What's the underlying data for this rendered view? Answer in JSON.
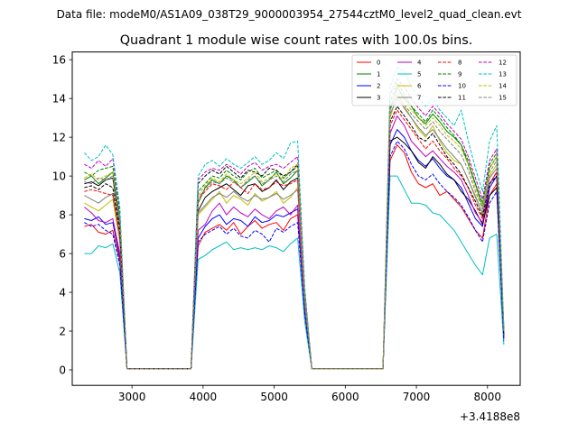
{
  "suptitle": "Data file: modeM0/AS1A09_038T29_9000003954_27544cztM0_level2_quad_clean.evt",
  "chart_data": {
    "type": "line",
    "title": "Quadrant 1 module wise count rates with 100.0s bins.",
    "xlabel": "",
    "ylabel": "",
    "x_offset_label": "+3.4188e8",
    "xlim": [
      2160,
      8460
    ],
    "ylim": [
      -0.8,
      16.4
    ],
    "xticks": [
      3000,
      4000,
      5000,
      6000,
      7000,
      8000
    ],
    "yticks": [
      0,
      2,
      4,
      6,
      8,
      10,
      12,
      14,
      16
    ],
    "legend_location": "top-right",
    "legend_columns": 4,
    "x": [
      2330,
      2430,
      2530,
      2630,
      2730,
      2830,
      2930,
      3030,
      3130,
      3230,
      3330,
      3430,
      3530,
      3630,
      3730,
      3830,
      3930,
      4030,
      4130,
      4230,
      4330,
      4430,
      4530,
      4630,
      4730,
      4830,
      4930,
      5030,
      5130,
      5230,
      5330,
      5430,
      5530,
      5630,
      5730,
      5830,
      5930,
      6030,
      6130,
      6230,
      6330,
      6430,
      6530,
      6630,
      6730,
      6830,
      6930,
      7030,
      7130,
      7230,
      7330,
      7430,
      7530,
      7630,
      7730,
      7830,
      7930,
      8030,
      8130,
      8230
    ],
    "series": [
      {
        "name": "0",
        "color": "#ff0000",
        "style": "solid",
        "values": [
          7.4,
          7.5,
          7.1,
          7.0,
          7.2,
          5.6,
          0.05,
          0.05,
          0.05,
          0.05,
          0.05,
          0.05,
          0.05,
          0.05,
          0.05,
          0.05,
          6.4,
          7.1,
          7.3,
          7.5,
          7.2,
          7.6,
          7.0,
          7.4,
          7.7,
          7.3,
          7.5,
          7.6,
          7.2,
          7.8,
          8.0,
          3.0,
          0.05,
          0.05,
          0.05,
          0.05,
          0.05,
          0.05,
          0.05,
          0.05,
          0.05,
          0.05,
          0.05,
          10.8,
          11.6,
          11.2,
          10.2,
          9.6,
          9.4,
          9.6,
          9.0,
          9.2,
          8.8,
          8.4,
          7.8,
          7.2,
          6.8,
          9.0,
          9.6,
          1.6
        ]
      },
      {
        "name": "1",
        "color": "#008000",
        "style": "solid",
        "values": [
          9.8,
          10.0,
          9.6,
          9.9,
          10.2,
          7.8,
          0.05,
          0.05,
          0.05,
          0.05,
          0.05,
          0.05,
          0.05,
          0.05,
          0.05,
          0.05,
          8.6,
          9.4,
          9.8,
          9.6,
          10.0,
          9.8,
          9.4,
          9.7,
          10.0,
          9.5,
          9.8,
          10.2,
          9.6,
          9.9,
          10.3,
          3.9,
          0.05,
          0.05,
          0.05,
          0.05,
          0.05,
          0.05,
          0.05,
          0.05,
          0.05,
          0.05,
          0.05,
          13.4,
          14.6,
          14.0,
          13.6,
          13.0,
          12.7,
          13.2,
          12.8,
          12.3,
          12.0,
          11.6,
          10.6,
          9.6,
          8.4,
          10.4,
          11.0,
          2.0
        ]
      },
      {
        "name": "2",
        "color": "#0000ff",
        "style": "solid",
        "values": [
          7.8,
          7.7,
          7.9,
          7.5,
          7.6,
          5.8,
          0.05,
          0.05,
          0.05,
          0.05,
          0.05,
          0.05,
          0.05,
          0.05,
          0.05,
          0.05,
          6.8,
          7.4,
          7.8,
          8.0,
          7.5,
          7.8,
          7.7,
          7.4,
          7.9,
          7.6,
          7.7,
          8.0,
          7.9,
          8.1,
          8.3,
          3.1,
          0.05,
          0.05,
          0.05,
          0.05,
          0.05,
          0.05,
          0.05,
          0.05,
          0.05,
          0.05,
          0.05,
          11.6,
          12.4,
          12.0,
          11.3,
          10.8,
          10.5,
          10.9,
          10.4,
          10.0,
          9.8,
          9.4,
          8.6,
          7.8,
          7.4,
          9.4,
          10.0,
          1.7
        ]
      },
      {
        "name": "3",
        "color": "#000000",
        "style": "solid",
        "values": [
          9.6,
          9.7,
          9.5,
          9.8,
          9.9,
          7.4,
          0.05,
          0.05,
          0.05,
          0.05,
          0.05,
          0.05,
          0.05,
          0.05,
          0.05,
          0.05,
          8.2,
          8.9,
          9.2,
          9.4,
          9.6,
          9.3,
          9.0,
          9.5,
          9.6,
          9.2,
          9.4,
          9.8,
          9.3,
          9.7,
          9.9,
          3.7,
          0.05,
          0.05,
          0.05,
          0.05,
          0.05,
          0.05,
          0.05,
          0.05,
          0.05,
          0.05,
          0.05,
          11.8,
          12.0,
          11.7,
          11.3,
          10.7,
          10.4,
          11.0,
          10.6,
          10.1,
          9.8,
          9.2,
          8.8,
          8.2,
          7.5,
          9.0,
          9.4,
          1.8
        ]
      },
      {
        "name": "4",
        "color": "#bf00bf",
        "style": "solid",
        "values": [
          8.4,
          8.1,
          7.7,
          7.6,
          7.8,
          6.0,
          0.05,
          0.05,
          0.05,
          0.05,
          0.05,
          0.05,
          0.05,
          0.05,
          0.05,
          0.05,
          7.2,
          7.5,
          8.2,
          8.6,
          8.0,
          8.4,
          8.1,
          7.9,
          8.3,
          8.0,
          7.8,
          8.2,
          8.4,
          8.0,
          8.5,
          3.2,
          0.05,
          0.05,
          0.05,
          0.05,
          0.05,
          0.05,
          0.05,
          0.05,
          0.05,
          0.05,
          0.05,
          12.2,
          13.1,
          12.6,
          11.8,
          11.4,
          11.0,
          11.3,
          10.9,
          10.5,
          10.2,
          9.8,
          9.0,
          8.1,
          7.6,
          9.6,
          10.2,
          1.7
        ]
      },
      {
        "name": "5",
        "color": "#00bfbf",
        "style": "solid",
        "values": [
          6.0,
          6.0,
          6.4,
          6.3,
          6.5,
          5.0,
          0.05,
          0.05,
          0.05,
          0.05,
          0.05,
          0.05,
          0.05,
          0.05,
          0.05,
          0.05,
          5.7,
          5.9,
          6.2,
          6.4,
          6.6,
          6.2,
          6.3,
          6.2,
          6.3,
          6.2,
          6.4,
          6.3,
          6.1,
          6.5,
          6.8,
          2.5,
          0.05,
          0.05,
          0.05,
          0.05,
          0.05,
          0.05,
          0.05,
          0.05,
          0.05,
          0.05,
          0.05,
          10.0,
          10.0,
          9.3,
          8.6,
          8.6,
          8.5,
          8.1,
          8.0,
          7.6,
          7.2,
          6.6,
          6.0,
          5.4,
          4.9,
          6.8,
          7.0,
          1.3
        ]
      },
      {
        "name": "6",
        "color": "#bfbf00",
        "style": "solid",
        "values": [
          8.6,
          8.4,
          8.2,
          8.5,
          8.8,
          6.6,
          0.05,
          0.05,
          0.05,
          0.05,
          0.05,
          0.05,
          0.05,
          0.05,
          0.05,
          0.05,
          8.0,
          8.4,
          8.8,
          9.2,
          8.6,
          9.0,
          8.8,
          8.5,
          9.1,
          8.7,
          8.9,
          9.2,
          8.6,
          8.9,
          9.4,
          3.5,
          0.05,
          0.05,
          0.05,
          0.05,
          0.05,
          0.05,
          0.05,
          0.05,
          0.05,
          0.05,
          0.05,
          13.0,
          14.2,
          13.6,
          13.0,
          12.4,
          12.0,
          12.6,
          11.8,
          11.2,
          10.8,
          10.6,
          9.8,
          9.0,
          8.0,
          10.0,
          10.6,
          1.9
        ]
      },
      {
        "name": "7",
        "color": "#808080",
        "style": "solid",
        "values": [
          9.0,
          8.8,
          8.6,
          8.9,
          9.1,
          6.8,
          0.05,
          0.05,
          0.05,
          0.05,
          0.05,
          0.05,
          0.05,
          0.05,
          0.05,
          0.05,
          8.1,
          8.5,
          8.9,
          9.1,
          8.9,
          9.2,
          8.9,
          8.7,
          9.0,
          8.8,
          8.9,
          9.1,
          8.8,
          9.0,
          9.3,
          3.5,
          0.05,
          0.05,
          0.05,
          0.05,
          0.05,
          0.05,
          0.05,
          0.05,
          0.05,
          0.05,
          0.05,
          13.2,
          14.0,
          13.5,
          13.0,
          12.5,
          12.1,
          12.4,
          11.9,
          11.4,
          11.0,
          10.6,
          9.8,
          8.9,
          8.1,
          9.9,
          10.4,
          1.9
        ]
      },
      {
        "name": "8",
        "color": "#ff0000",
        "style": "dashed",
        "values": [
          9.2,
          9.3,
          9.2,
          9.1,
          9.0,
          6.9,
          0.05,
          0.05,
          0.05,
          0.05,
          0.05,
          0.05,
          0.05,
          0.05,
          0.05,
          0.05,
          8.8,
          9.2,
          9.6,
          9.5,
          9.3,
          9.7,
          9.4,
          9.1,
          9.6,
          9.3,
          9.4,
          9.7,
          9.5,
          9.6,
          9.8,
          3.6,
          0.05,
          0.05,
          0.05,
          0.05,
          0.05,
          0.05,
          0.05,
          0.05,
          0.05,
          0.05,
          0.05,
          12.6,
          13.4,
          12.9,
          12.4,
          11.9,
          11.4,
          11.8,
          11.3,
          10.9,
          10.4,
          10.0,
          9.4,
          8.5,
          7.8,
          9.6,
          10.2,
          1.8
        ]
      },
      {
        "name": "9",
        "color": "#008000",
        "style": "dashed",
        "values": [
          10.2,
          10.0,
          10.3,
          10.4,
          10.5,
          7.9,
          0.05,
          0.05,
          0.05,
          0.05,
          0.05,
          0.05,
          0.05,
          0.05,
          0.05,
          0.05,
          9.2,
          9.6,
          10.0,
          9.9,
          10.3,
          10.0,
          9.8,
          10.2,
          10.4,
          9.9,
          10.1,
          10.3,
          9.9,
          10.2,
          10.5,
          3.9,
          0.05,
          0.05,
          0.05,
          0.05,
          0.05,
          0.05,
          0.05,
          0.05,
          0.05,
          0.05,
          0.05,
          13.8,
          14.8,
          14.2,
          13.6,
          13.2,
          12.8,
          13.4,
          13.0,
          12.5,
          12.1,
          11.6,
          10.8,
          9.6,
          8.6,
          10.6,
          11.2,
          2.0
        ]
      },
      {
        "name": "10",
        "color": "#0000ff",
        "style": "dashed",
        "values": [
          7.6,
          7.4,
          7.5,
          7.2,
          7.0,
          5.4,
          0.05,
          0.05,
          0.05,
          0.05,
          0.05,
          0.05,
          0.05,
          0.05,
          0.05,
          0.05,
          6.6,
          7.0,
          7.2,
          7.4,
          7.0,
          7.3,
          6.9,
          6.8,
          7.2,
          7.0,
          6.6,
          7.3,
          7.1,
          7.4,
          7.6,
          2.9,
          0.05,
          0.05,
          0.05,
          0.05,
          0.05,
          0.05,
          0.05,
          0.05,
          0.05,
          0.05,
          0.05,
          11.0,
          11.8,
          11.4,
          10.6,
          10.0,
          9.8,
          10.1,
          9.6,
          9.2,
          8.9,
          8.5,
          7.9,
          7.2,
          6.6,
          8.6,
          9.2,
          1.5
        ]
      },
      {
        "name": "11",
        "color": "#000000",
        "style": "dashed",
        "values": [
          9.4,
          9.5,
          9.3,
          9.6,
          9.4,
          7.1,
          0.05,
          0.05,
          0.05,
          0.05,
          0.05,
          0.05,
          0.05,
          0.05,
          0.05,
          0.05,
          9.6,
          10.0,
          10.3,
          10.1,
          10.5,
          10.2,
          9.9,
          10.3,
          10.2,
          10.0,
          10.4,
          10.3,
          10.0,
          10.2,
          10.6,
          3.8,
          0.05,
          0.05,
          0.05,
          0.05,
          0.05,
          0.05,
          0.05,
          0.05,
          0.05,
          0.05,
          0.05,
          12.8,
          13.6,
          13.1,
          12.6,
          12.0,
          11.8,
          12.2,
          11.6,
          11.0,
          10.6,
          10.1,
          9.4,
          8.7,
          7.9,
          9.6,
          10.0,
          1.9
        ]
      },
      {
        "name": "12",
        "color": "#bf00bf",
        "style": "dashed",
        "values": [
          10.6,
          10.4,
          10.8,
          10.5,
          10.9,
          8.2,
          0.05,
          0.05,
          0.05,
          0.05,
          0.05,
          0.05,
          0.05,
          0.05,
          0.05,
          0.05,
          9.8,
          10.2,
          10.4,
          10.3,
          10.6,
          10.4,
          10.1,
          10.5,
          10.7,
          10.3,
          10.5,
          10.6,
          10.4,
          10.7,
          11.0,
          4.0,
          0.05,
          0.05,
          0.05,
          0.05,
          0.05,
          0.05,
          0.05,
          0.05,
          0.05,
          0.05,
          0.05,
          14.2,
          15.0,
          14.6,
          14.0,
          13.5,
          13.1,
          13.6,
          13.2,
          12.7,
          12.3,
          11.9,
          11.0,
          9.9,
          8.8,
          10.8,
          11.4,
          2.1
        ]
      },
      {
        "name": "13",
        "color": "#00bfbf",
        "style": "dashed",
        "values": [
          11.2,
          10.8,
          11.0,
          11.6,
          11.1,
          8.4,
          0.05,
          0.05,
          0.05,
          0.05,
          0.05,
          0.05,
          0.05,
          0.05,
          0.05,
          0.05,
          10.0,
          10.6,
          10.8,
          10.5,
          10.9,
          10.6,
          10.4,
          10.7,
          11.0,
          10.6,
          10.8,
          11.2,
          10.9,
          11.7,
          11.8,
          4.3,
          0.05,
          0.05,
          0.05,
          0.05,
          0.05,
          0.05,
          0.05,
          0.05,
          0.05,
          0.05,
          0.05,
          14.6,
          15.6,
          15.4,
          14.6,
          14.0,
          13.6,
          14.0,
          13.4,
          13.0,
          12.6,
          13.4,
          11.8,
          10.4,
          9.2,
          11.8,
          12.6,
          2.2
        ]
      },
      {
        "name": "14",
        "color": "#bfbf00",
        "style": "dashed",
        "values": [
          9.9,
          10.1,
          9.8,
          10.0,
          10.2,
          7.6,
          0.05,
          0.05,
          0.05,
          0.05,
          0.05,
          0.05,
          0.05,
          0.05,
          0.05,
          0.05,
          9.0,
          9.5,
          9.9,
          9.7,
          10.1,
          9.8,
          9.6,
          9.9,
          10.2,
          9.7,
          9.9,
          10.1,
          9.8,
          10.4,
          10.6,
          3.8,
          0.05,
          0.05,
          0.05,
          0.05,
          0.05,
          0.05,
          0.05,
          0.05,
          0.05,
          0.05,
          0.05,
          13.6,
          14.4,
          13.9,
          13.4,
          13.0,
          12.6,
          13.0,
          12.6,
          12.1,
          11.8,
          11.4,
          10.6,
          9.4,
          8.4,
          10.4,
          11.0,
          2.0
        ]
      },
      {
        "name": "15",
        "color": "#808080",
        "style": "dashed",
        "values": [
          9.7,
          9.6,
          9.9,
          9.8,
          10.0,
          7.5,
          0.05,
          0.05,
          0.05,
          0.05,
          0.05,
          0.05,
          0.05,
          0.05,
          0.05,
          0.05,
          8.9,
          9.3,
          9.7,
          9.6,
          9.9,
          9.7,
          9.4,
          9.8,
          10.0,
          9.6,
          9.8,
          10.0,
          9.7,
          10.1,
          10.3,
          3.7,
          0.05,
          0.05,
          0.05,
          0.05,
          0.05,
          0.05,
          0.05,
          0.05,
          0.05,
          0.05,
          0.05,
          13.4,
          14.2,
          13.7,
          13.2,
          12.8,
          12.4,
          12.8,
          12.3,
          11.9,
          11.5,
          11.1,
          10.3,
          9.2,
          8.3,
          10.2,
          10.8,
          2.0
        ]
      }
    ]
  }
}
